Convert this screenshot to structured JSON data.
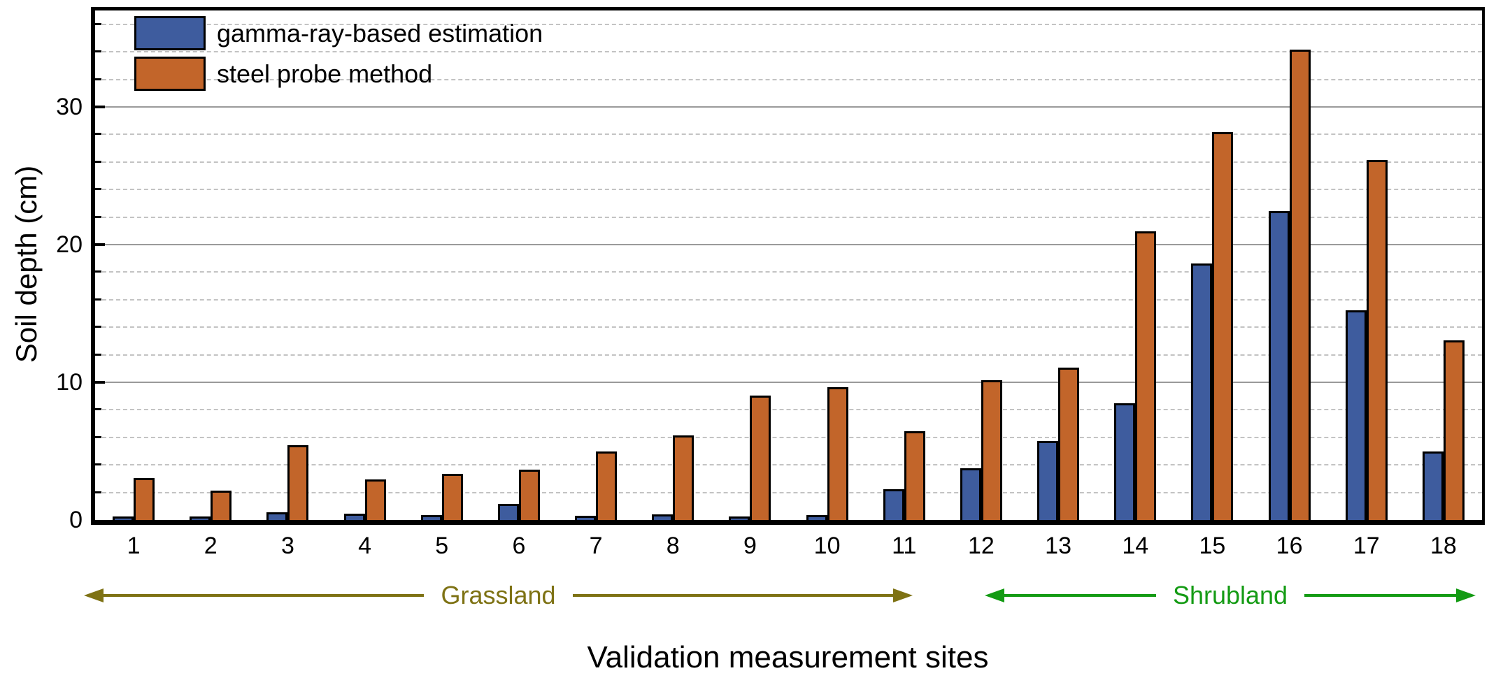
{
  "chart_data": {
    "type": "bar",
    "title": "",
    "xlabel": "Validation measurement sites",
    "ylabel": "Soil depth (cm)",
    "categories": [
      "1",
      "2",
      "3",
      "4",
      "5",
      "6",
      "7",
      "8",
      "9",
      "10",
      "11",
      "12",
      "13",
      "14",
      "15",
      "16",
      "17",
      "18"
    ],
    "series": [
      {
        "name": "gamma-ray-based estimation",
        "color": "#3e5c9e",
        "values": [
          0.1,
          0.1,
          0.4,
          0.3,
          0.2,
          1.0,
          0.15,
          0.25,
          0.1,
          0.2,
          2.1,
          3.6,
          5.6,
          8.3,
          18.5,
          22.3,
          15.1,
          4.8
        ]
      },
      {
        "name": "steel probe method",
        "color": "#c2652a",
        "values": [
          2.9,
          2.0,
          5.3,
          2.8,
          3.2,
          3.5,
          4.8,
          6.0,
          8.9,
          9.5,
          6.3,
          10.0,
          10.9,
          20.8,
          28.0,
          34.0,
          26.0,
          12.9
        ]
      }
    ],
    "ylim": [
      0,
      37
    ],
    "yticks_major": [
      0,
      10,
      20,
      30
    ],
    "minor_grid_step": 2,
    "grid": "major-solid-minor-dashed",
    "legend_position": "top-left",
    "site_groups": [
      {
        "label": "Grassland",
        "sites": "1-11",
        "color": "#7e7214"
      },
      {
        "label": "Shrubland",
        "sites": "12-18",
        "color": "#149b14"
      }
    ]
  }
}
